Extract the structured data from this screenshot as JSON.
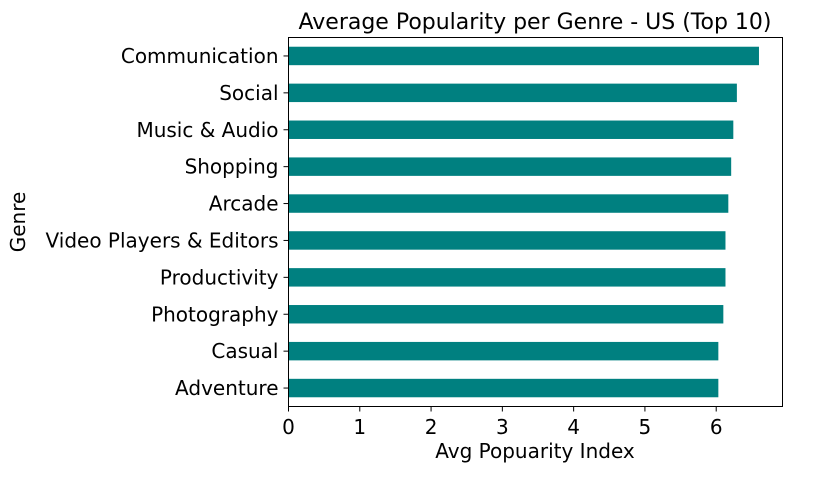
{
  "chart_data": {
    "type": "bar",
    "orientation": "horizontal",
    "title": "Average Popularity per Genre - US (Top 10)",
    "xlabel": "Avg Popuarity Index",
    "ylabel": "Genre",
    "categories": [
      "Communication",
      "Social",
      "Music & Audio",
      "Shopping",
      "Arcade",
      "Video Players & Editors",
      "Productivity",
      "Photography",
      "Casual",
      "Adventure"
    ],
    "values": [
      6.6,
      6.29,
      6.24,
      6.21,
      6.17,
      6.13,
      6.13,
      6.1,
      6.03,
      6.03
    ],
    "xlim": [
      0,
      6.93
    ],
    "xticks": [
      0,
      1,
      2,
      3,
      4,
      5,
      6
    ],
    "grid": false,
    "bar_color": "#008080"
  }
}
